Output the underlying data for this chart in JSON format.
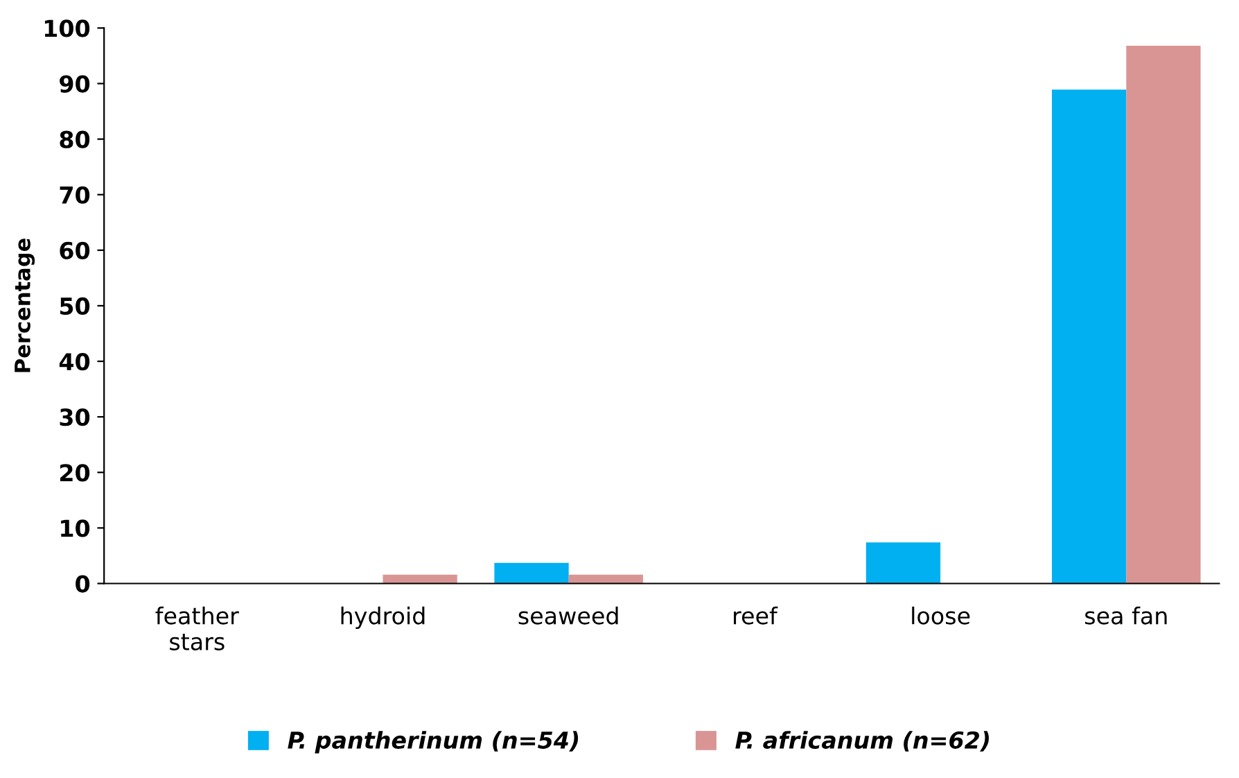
{
  "chart_data": {
    "type": "bar",
    "ylabel": "Percentage",
    "categories": [
      "feather\nstars",
      "hydroid",
      "seaweed",
      "reef",
      "loose",
      "sea fan"
    ],
    "series": [
      {
        "name": "P. pantherinum (n=54)",
        "color": "#00b0f0",
        "values": [
          0,
          0,
          3.7,
          0,
          7.4,
          88.9
        ]
      },
      {
        "name": "P. africanum (n=62)",
        "color": "#d99594",
        "values": [
          0,
          1.6,
          1.6,
          0,
          0,
          96.8
        ]
      }
    ],
    "ylim": [
      0,
      100
    ],
    "yticks": [
      0,
      10,
      20,
      30,
      40,
      50,
      60,
      70,
      80,
      90,
      100
    ],
    "grid": false,
    "legend": "bottom"
  }
}
